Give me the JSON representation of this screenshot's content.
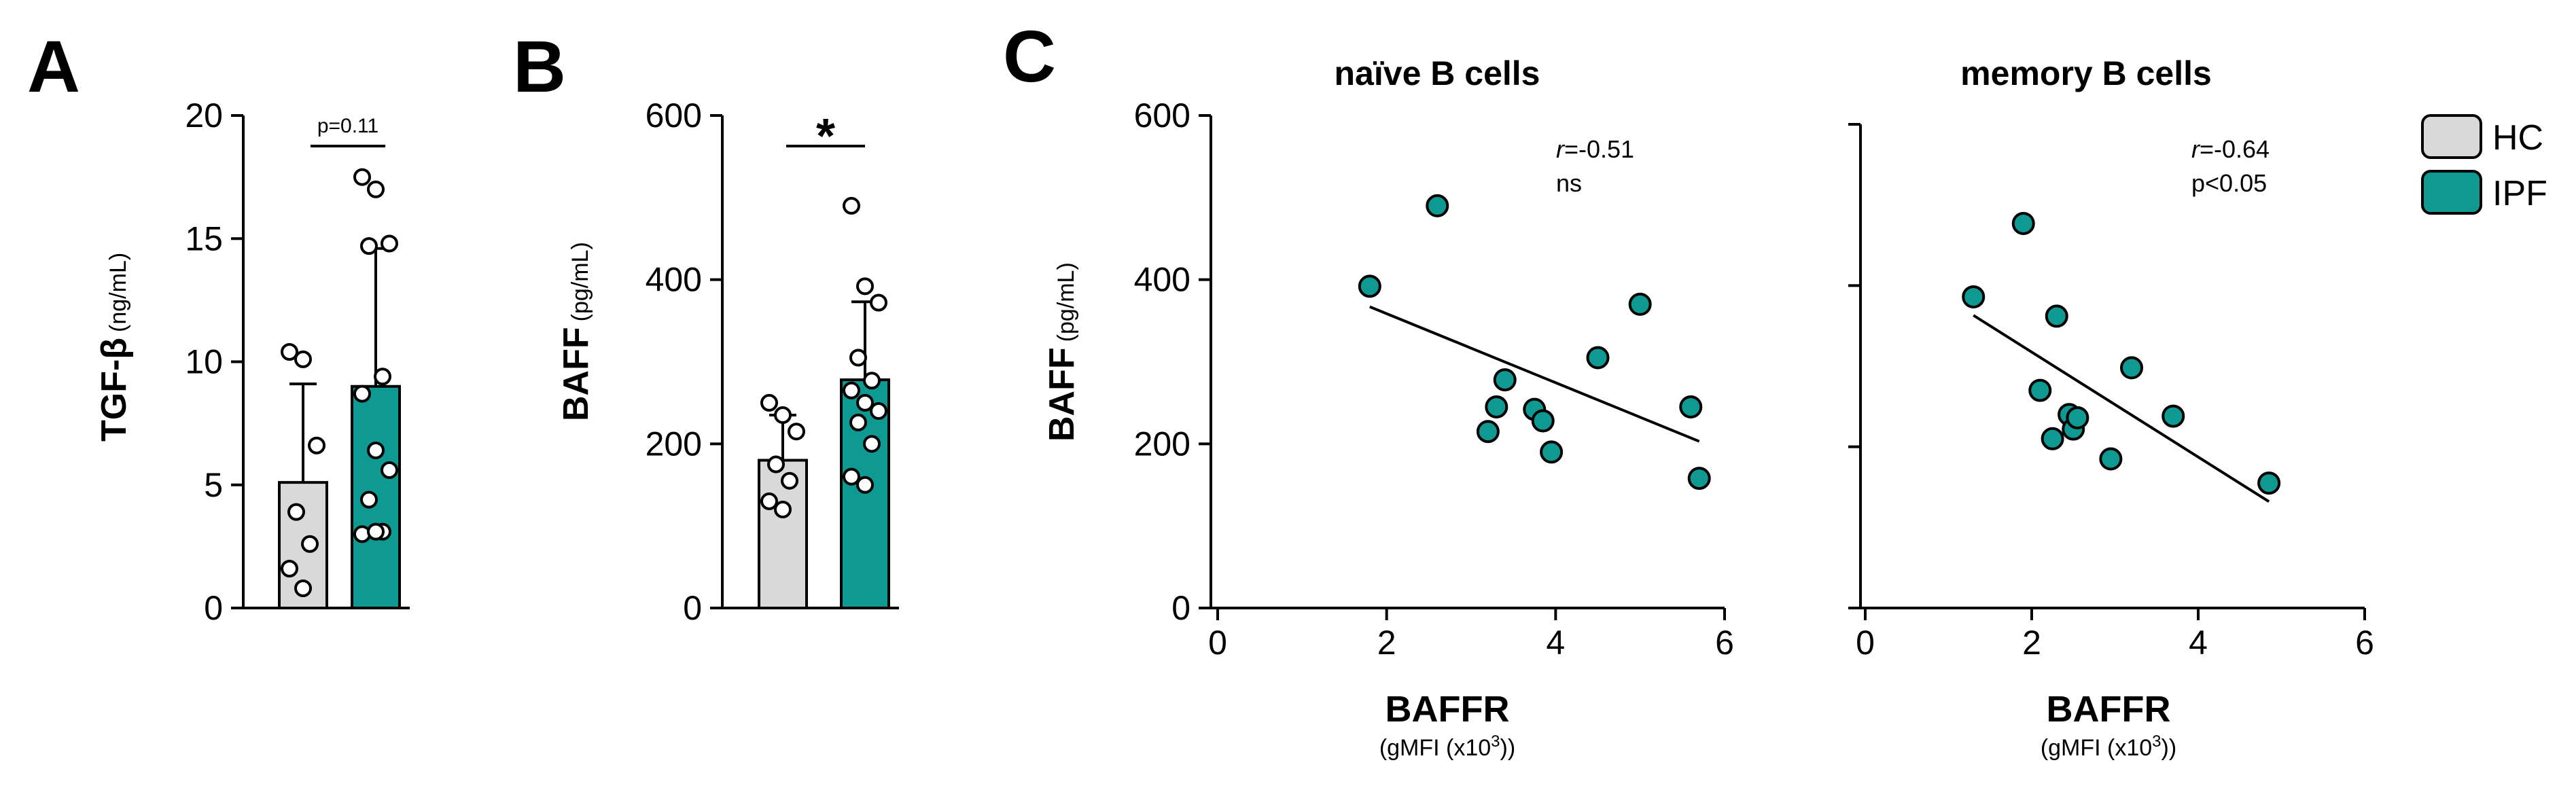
{
  "colors": {
    "hc": "#d9d9d9",
    "ipf": "#0f9993",
    "ink": "#000000"
  },
  "legend": [
    {
      "key": "hc",
      "label": "HC"
    },
    {
      "key": "ipf",
      "label": "IPF"
    }
  ],
  "chart_data": [
    {
      "panel": "A",
      "type": "bar",
      "title": "",
      "ylabel": "TGF-β",
      "ylabel_unit": "(ng/mL)",
      "ylim": [
        0,
        20
      ],
      "yticks": [
        0,
        5,
        10,
        15,
        20
      ],
      "categories": [
        "HC",
        "IPF"
      ],
      "means": [
        5.1,
        9.0
      ],
      "sd": [
        4.0,
        5.6
      ],
      "points": [
        [
          10.4,
          10.1,
          6.6,
          3.9,
          2.6,
          1.6,
          0.8
        ],
        [
          17.5,
          17.0,
          14.8,
          14.7,
          9.4,
          8.7,
          6.4,
          5.6,
          4.4,
          3.1,
          3.0,
          3.1
        ]
      ],
      "significance": "p=0.11"
    },
    {
      "panel": "B",
      "type": "bar",
      "title": "",
      "ylabel": "BAFF",
      "ylabel_unit": "(pg/mL)",
      "ylim": [
        0,
        600
      ],
      "yticks": [
        0,
        200,
        400,
        600
      ],
      "categories": [
        "HC",
        "IPF"
      ],
      "means": [
        180,
        278
      ],
      "sd": [
        55,
        95
      ],
      "points": [
        [
          250,
          235,
          215,
          175,
          155,
          130,
          120
        ],
        [
          490,
          392,
          372,
          305,
          277,
          265,
          250,
          240,
          226,
          200,
          160,
          150
        ]
      ],
      "significance": "*"
    },
    {
      "panel": "C",
      "type": "scatter",
      "title": "naïve B cells",
      "xlabel": "BAFFR",
      "xlabel_unit": "(gMFI (x10",
      "xlabel_exp": "3",
      "xlabel_close": "))",
      "ylabel": "BAFF",
      "ylabel_unit": "(pg/mL)",
      "xlim": [
        0,
        6
      ],
      "ylim": [
        0,
        600
      ],
      "xticks": [
        0,
        2,
        4,
        6
      ],
      "yticks": [
        0,
        200,
        400,
        600
      ],
      "points": [
        {
          "x": 1.8,
          "y": 392
        },
        {
          "x": 2.6,
          "y": 490
        },
        {
          "x": 3.2,
          "y": 215
        },
        {
          "x": 3.3,
          "y": 245
        },
        {
          "x": 3.4,
          "y": 278
        },
        {
          "x": 3.75,
          "y": 242
        },
        {
          "x": 3.85,
          "y": 228
        },
        {
          "x": 3.95,
          "y": 190
        },
        {
          "x": 4.5,
          "y": 305
        },
        {
          "x": 5.0,
          "y": 370
        },
        {
          "x": 5.6,
          "y": 245
        },
        {
          "x": 5.7,
          "y": 158
        }
      ],
      "fit": {
        "x": [
          1.8,
          5.7
        ],
        "y": [
          367,
          203
        ]
      },
      "r_label": "r",
      "r_value": "=-0.51",
      "p_value": "ns"
    },
    {
      "panel": "C",
      "type": "scatter",
      "title": "memory B cells",
      "xlabel": "BAFFR",
      "xlabel_unit": "(gMFI (x10",
      "xlabel_exp": "3",
      "xlabel_close": "))",
      "ylabel": "",
      "xlim": [
        0,
        6
      ],
      "ylim": [
        0,
        600
      ],
      "xticks": [
        0,
        2,
        4,
        6
      ],
      "yticks": [
        0,
        200,
        400,
        600
      ],
      "points": [
        {
          "x": 1.3,
          "y": 386
        },
        {
          "x": 1.9,
          "y": 477
        },
        {
          "x": 2.1,
          "y": 270
        },
        {
          "x": 2.25,
          "y": 210
        },
        {
          "x": 2.3,
          "y": 362
        },
        {
          "x": 2.45,
          "y": 240
        },
        {
          "x": 2.5,
          "y": 222
        },
        {
          "x": 2.55,
          "y": 236
        },
        {
          "x": 2.95,
          "y": 185
        },
        {
          "x": 3.2,
          "y": 298
        },
        {
          "x": 3.7,
          "y": 238
        },
        {
          "x": 4.85,
          "y": 155
        }
      ],
      "fit": {
        "x": [
          1.3,
          4.85
        ],
        "y": [
          363,
          132
        ]
      },
      "r_label": "r",
      "r_value": "=-0.64",
      "p_value": "p<0.05"
    }
  ]
}
